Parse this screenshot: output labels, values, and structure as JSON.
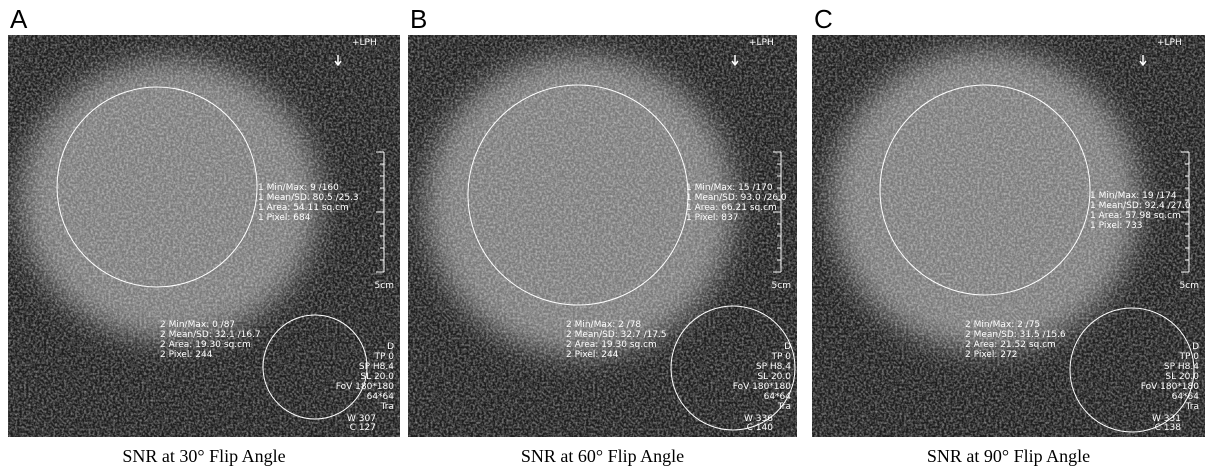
{
  "panels": [
    {
      "label": "A",
      "orientation": "+LPH",
      "roi1": [
        "1 Min/Max: 9 /160",
        "1 Mean/SD: 80.5 /25.3",
        "1 Area: 54.11 sq.cm",
        "1 Pixel: 684"
      ],
      "roi2": [
        "2 Min/Max: 0 /87",
        "2 Mean/SD: 32.1 /16.7",
        "2 Area: 19.30 sq.cm",
        "2 Pixel: 244"
      ],
      "scale": "5cm",
      "info": [
        "D",
        "TP 0",
        "SP H8.4",
        "SL 20.0",
        "FoV 180*180",
        "64*64",
        "Tra"
      ],
      "window": [
        "W 307",
        "C 127"
      ],
      "caption": "SNR at 30° Flip Angle"
    },
    {
      "label": "B",
      "orientation": "+LPH",
      "roi1": [
        "1 Min/Max: 15 /170",
        "1 Mean/SD: 93.0 /26.0",
        "1 Area: 66.21 sq.cm",
        "1 Pixel: 837"
      ],
      "roi2": [
        "2 Min/Max: 2 /78",
        "2 Mean/SD: 32.7 /17.5",
        "2 Area: 19.30 sq.cm",
        "2 Pixel: 244"
      ],
      "scale": "5cm",
      "info": [
        "D",
        "TP 0",
        "SP H8.4",
        "SL 20.0",
        "FoV 180*180",
        "64*64",
        "Tra"
      ],
      "window": [
        "W 336",
        "C 140"
      ],
      "caption": "SNR at 60° Flip Angle"
    },
    {
      "label": "C",
      "orientation": "+LPH",
      "roi1": [
        "1 Min/Max: 19 /174",
        "1 Mean/SD: 92.4 /27.0",
        "1 Area: 57.98 sq.cm",
        "1 Pixel: 733"
      ],
      "roi2": [
        "2 Min/Max: 2 /75",
        "2 Mean/SD: 31.5 /15.6",
        "2 Area: 21.52 sq.cm",
        "2 Pixel: 272"
      ],
      "scale": "5cm",
      "info": [
        "D",
        "TP 0",
        "SP H8.4",
        "SL 20.0",
        "FoV 180*180",
        "64*64",
        "Tra"
      ],
      "window": [
        "W 331",
        "C 138"
      ],
      "caption": "SNR at 90° Flip Angle"
    }
  ]
}
